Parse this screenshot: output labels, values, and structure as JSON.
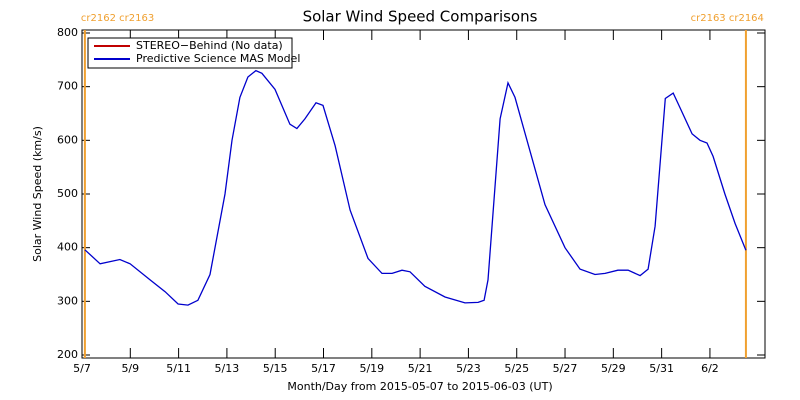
{
  "chart_data": {
    "type": "line",
    "title": "Solar Wind Speed Comparisons",
    "x_label": "Month/Day from 2015-05-07 to 2015-06-03 (UT)",
    "y_label": "Solar Wind Speed (km/s)",
    "xlim": [
      0,
      28.28
    ],
    "xticks": [
      {
        "value": 0,
        "label": "5/7"
      },
      {
        "value": 2,
        "label": "5/9"
      },
      {
        "value": 4,
        "label": "5/11"
      },
      {
        "value": 6,
        "label": "5/13"
      },
      {
        "value": 8,
        "label": "5/15"
      },
      {
        "value": 10,
        "label": "5/17"
      },
      {
        "value": 12,
        "label": "5/19"
      },
      {
        "value": 14,
        "label": "5/21"
      },
      {
        "value": 16,
        "label": "5/23"
      },
      {
        "value": 18,
        "label": "5/25"
      },
      {
        "value": 20,
        "label": "5/27"
      },
      {
        "value": 22,
        "label": "5/29"
      },
      {
        "value": 24,
        "label": "5/31"
      },
      {
        "value": 26,
        "label": "6/2"
      }
    ],
    "ylim": [
      200,
      800
    ],
    "yticks": [
      200,
      300,
      400,
      500,
      600,
      700,
      800
    ],
    "legend": "upper left",
    "annotations": [
      {
        "x": 0.12,
        "label": "cr2162 cr2163",
        "color": "#f0a030"
      },
      {
        "x": 27.49,
        "label": "cr2163 cr2164",
        "color": "#f0a030"
      }
    ],
    "series": [
      {
        "name": "STEREO−Behind (No data)",
        "color": "#c00000"
      },
      {
        "name": "Predictive Science MAS Model",
        "color": "#0000cc",
        "x": [
          0.12,
          0.75,
          1.57,
          1.99,
          2.82,
          3.44,
          3.98,
          4.39,
          4.8,
          5.3,
          5.92,
          6.21,
          6.54,
          6.87,
          7.2,
          7.45,
          7.99,
          8.61,
          8.9,
          9.23,
          9.69,
          9.98,
          10.48,
          11.1,
          11.84,
          12.42,
          12.84,
          13.25,
          13.58,
          14.2,
          15.03,
          15.86,
          16.4,
          16.65,
          16.81,
          17.31,
          17.64,
          17.93,
          18.55,
          19.17,
          20.0,
          20.62,
          21.24,
          21.66,
          22.19,
          22.61,
          23.11,
          23.44,
          23.73,
          24.15,
          24.48,
          24.77,
          25.26,
          25.59,
          25.88,
          26.13,
          26.62,
          27.04,
          27.49
        ],
        "values": [
          396,
          370,
          378,
          370,
          340,
          318,
          295,
          293,
          302,
          350,
          500,
          600,
          680,
          718,
          730,
          725,
          695,
          630,
          622,
          640,
          670,
          665,
          590,
          470,
          380,
          352,
          352,
          358,
          355,
          328,
          308,
          297,
          298,
          302,
          340,
          640,
          707,
          680,
          580,
          480,
          400,
          360,
          350,
          352,
          358,
          358,
          348,
          360,
          440,
          678,
          688,
          660,
          612,
          600,
          595,
          570,
          500,
          445,
          395
        ]
      }
    ]
  }
}
